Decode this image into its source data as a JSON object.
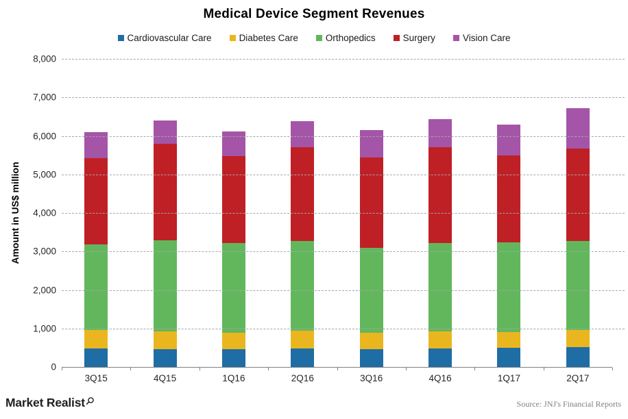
{
  "title": "Medical Device Segment Revenues",
  "footer": {
    "brand": "Market Realist",
    "source": "Source: JNJ's Financial Reports"
  },
  "chart_data": {
    "type": "bar",
    "stacked": true,
    "title": "Medical Device Segment Revenues",
    "xlabel": "",
    "ylabel": "Amount in US$ million",
    "ylim": [
      0,
      8000
    ],
    "ytick_step": 1000,
    "ytick_labels": [
      "0",
      "1,000",
      "2,000",
      "3,000",
      "4,000",
      "5,000",
      "6,000",
      "7,000",
      "8,000"
    ],
    "grid": "horizontal-dashed",
    "legend_position": "top",
    "categories": [
      "3Q15",
      "4Q15",
      "1Q16",
      "2Q16",
      "3Q16",
      "4Q16",
      "1Q17",
      "2Q17"
    ],
    "series": [
      {
        "name": "Cardiovascular Care",
        "color": "#1f6da5",
        "values": [
          489,
          471,
          455,
          489,
          470,
          489,
          492,
          522
        ]
      },
      {
        "name": "Diabetes Care",
        "color": "#eab61f",
        "values": [
          478,
          449,
          437,
          461,
          425,
          441,
          422,
          439
        ]
      },
      {
        "name": "Orthopedics",
        "color": "#62b75d",
        "values": [
          2207,
          2364,
          2326,
          2325,
          2207,
          2290,
          2329,
          2307
        ]
      },
      {
        "name": "Surgery",
        "color": "#bf2026",
        "values": [
          2244,
          2510,
          2257,
          2438,
          2330,
          2493,
          2250,
          2411
        ]
      },
      {
        "name": "Vision Care",
        "color": "#a455a8",
        "values": [
          678,
          602,
          633,
          678,
          724,
          728,
          792,
          1050
        ]
      }
    ],
    "totals": [
      6096,
      6396,
      6108,
      6391,
      6156,
      6441,
      6285,
      6729
    ]
  }
}
